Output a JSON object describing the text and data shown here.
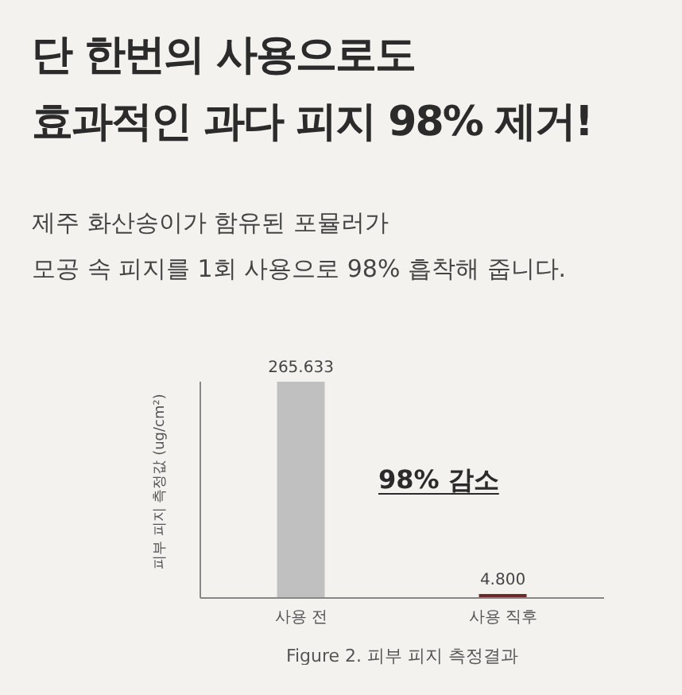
{
  "chart_data": {
    "type": "bar",
    "title": "단 한번의 사용으로도\n효과적인 과다 피지 98% 제거!",
    "subtitle": "제주 화산송이가 함유된 포뮬러가\n모공 속 피지를 1회 사용으로 98% 흡착해 줍니다.",
    "xlabel": "Figure 2. 피부 피지 측정결과",
    "ylabel": "피부 피지 측정값 (ug/cm²)",
    "categories": [
      "사용 전",
      "사용 직후"
    ],
    "values": [
      265.633,
      4.8
    ],
    "value_labels": [
      "265.633",
      "4.800"
    ],
    "colors": [
      "#c0c0c0",
      "#6b2b2b"
    ],
    "annotations": [
      "98% 감소"
    ],
    "tick_labels": "x"
  }
}
